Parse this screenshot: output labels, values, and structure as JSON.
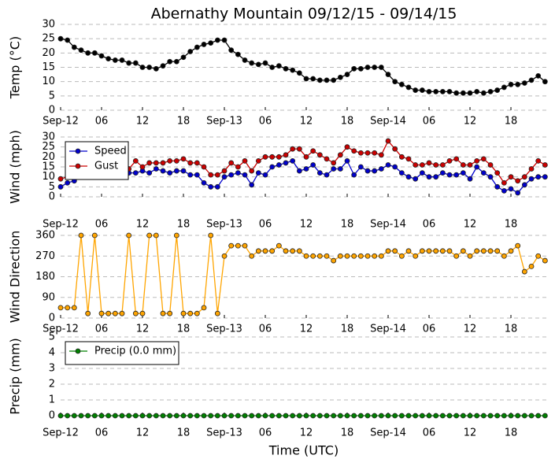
{
  "chart_data": [
    {
      "type": "line",
      "title": "Abernathy Mountain 09/12/15 - 09/14/15",
      "ylabel": "Temp (°C)",
      "categories": [
        "Sep-12",
        null,
        null,
        null,
        null,
        null,
        "06",
        null,
        null,
        null,
        null,
        null,
        "12",
        null,
        null,
        null,
        null,
        null,
        "18",
        null,
        null,
        null,
        null,
        null,
        "Sep-13",
        null,
        null,
        null,
        null,
        null,
        "06",
        null,
        null,
        null,
        null,
        null,
        "12",
        null,
        null,
        null,
        null,
        null,
        "18",
        null,
        null,
        null,
        null,
        null,
        "Sep-14",
        null,
        null,
        null,
        null,
        null,
        "06",
        null,
        null,
        null,
        null,
        null,
        "12",
        null,
        null,
        null,
        null,
        null,
        "18",
        null,
        null,
        null,
        null,
        null
      ],
      "series": [
        {
          "name": "Temp",
          "color": "#000000",
          "values": [
            25,
            24.5,
            22,
            21,
            20,
            20,
            19,
            18,
            17.5,
            17.5,
            16.5,
            16.5,
            15,
            15,
            14.5,
            15.5,
            17,
            17,
            18.5,
            20.5,
            22,
            23,
            23.5,
            24.5,
            24.5,
            21,
            19.5,
            17.5,
            16.5,
            16,
            16.5,
            15,
            15.5,
            14.5,
            14,
            13,
            11,
            11,
            10.5,
            10.5,
            10.5,
            11.5,
            12.5,
            14.5,
            14.5,
            15,
            15,
            15,
            12.5,
            10,
            9,
            8,
            7,
            7,
            6.5,
            6.5,
            6.5,
            6.5,
            6,
            6,
            6,
            6.5,
            6,
            6.5,
            7,
            8,
            9,
            9,
            9.5,
            10.5,
            12,
            10
          ]
        }
      ],
      "ylim": [
        0,
        30
      ],
      "yticks": [
        0,
        5,
        10,
        15,
        20,
        25,
        30
      ],
      "grid": true
    },
    {
      "type": "line",
      "ylabel": "Wind (mph)",
      "categories": [
        "Sep-12",
        null,
        null,
        null,
        null,
        null,
        "06",
        null,
        null,
        null,
        null,
        null,
        "12",
        null,
        null,
        null,
        null,
        null,
        "18",
        null,
        null,
        null,
        null,
        null,
        "Sep-13",
        null,
        null,
        null,
        null,
        null,
        "06",
        null,
        null,
        null,
        null,
        null,
        "12",
        null,
        null,
        null,
        null,
        null,
        "18",
        null,
        null,
        null,
        null,
        null,
        "Sep-14",
        null,
        null,
        null,
        null,
        null,
        "06",
        null,
        null,
        null,
        null,
        null,
        "12",
        null,
        null,
        null,
        null,
        null,
        "18",
        null,
        null,
        null,
        null,
        null
      ],
      "series": [
        {
          "name": "Speed",
          "color": "#0000cc",
          "values": [
            5,
            7,
            8,
            12,
            12,
            16,
            14,
            13,
            13,
            11,
            12,
            12,
            13,
            12,
            14,
            13,
            12,
            13,
            13,
            11,
            11,
            7,
            5,
            5,
            10,
            11,
            12,
            11,
            6,
            12,
            11,
            15,
            16,
            17,
            18,
            13,
            14,
            16,
            12,
            11,
            14,
            14,
            18,
            11,
            15,
            13,
            13,
            14,
            16,
            15,
            12,
            10,
            9,
            12,
            10,
            10,
            12,
            11,
            11,
            12,
            9,
            15,
            12,
            10,
            5,
            3,
            4,
            2,
            6,
            9,
            10,
            10
          ]
        },
        {
          "name": "Gust",
          "color": "#cc0000",
          "values": [
            9,
            10,
            12,
            15,
            17,
            18,
            18,
            17,
            16,
            15,
            14,
            18,
            15,
            17,
            17,
            17,
            18,
            18,
            19,
            17,
            17,
            15,
            11,
            11,
            13,
            17,
            15,
            18,
            13,
            18,
            20,
            20,
            20,
            21,
            24,
            24,
            20,
            23,
            21,
            19,
            17,
            21,
            25,
            23,
            22,
            22,
            22,
            21,
            28,
            24,
            20,
            19,
            16,
            16,
            17,
            16,
            16,
            18,
            19,
            16,
            16,
            18,
            19,
            16,
            12,
            7,
            10,
            8,
            10,
            14,
            18,
            16
          ]
        }
      ],
      "ylim": [
        0,
        30
      ],
      "yticks": [
        0,
        5,
        10,
        15,
        20,
        25,
        30
      ],
      "grid": true,
      "legend": "upper left"
    },
    {
      "type": "line",
      "ylabel": "Wind Direction",
      "categories": [
        "Sep-12",
        null,
        null,
        null,
        null,
        null,
        "06",
        null,
        null,
        null,
        null,
        null,
        "12",
        null,
        null,
        null,
        null,
        null,
        "18",
        null,
        null,
        null,
        null,
        null,
        "Sep-13",
        null,
        null,
        null,
        null,
        null,
        "06",
        null,
        null,
        null,
        null,
        null,
        "12",
        null,
        null,
        null,
        null,
        null,
        "18",
        null,
        null,
        null,
        null,
        null,
        "Sep-14",
        null,
        null,
        null,
        null,
        null,
        "06",
        null,
        null,
        null,
        null,
        null,
        "12",
        null,
        null,
        null,
        null,
        null,
        "18",
        null,
        null,
        null,
        null,
        null
      ],
      "series": [
        {
          "name": "Direction",
          "color": "#ffa500",
          "values": [
            45,
            45,
            45,
            360,
            20,
            360,
            20,
            20,
            20,
            20,
            360,
            20,
            20,
            360,
            360,
            20,
            20,
            360,
            20,
            20,
            20,
            45,
            360,
            20,
            270,
            315,
            315,
            315,
            270,
            292,
            292,
            292,
            315,
            292,
            292,
            292,
            270,
            270,
            270,
            270,
            250,
            270,
            270,
            270,
            270,
            270,
            270,
            270,
            292,
            292,
            270,
            292,
            270,
            292,
            292,
            292,
            292,
            292,
            270,
            292,
            270,
            292,
            292,
            292,
            292,
            270,
            292,
            315,
            202,
            225,
            270,
            250
          ]
        }
      ],
      "ylim": [
        0,
        360
      ],
      "yticks": [
        0,
        90,
        180,
        270,
        360
      ],
      "grid": true
    },
    {
      "type": "line",
      "ylabel": "Precip (mm)",
      "xlabel": "Time (UTC)",
      "categories": [
        "Sep-12",
        null,
        null,
        null,
        null,
        null,
        "06",
        null,
        null,
        null,
        null,
        null,
        "12",
        null,
        null,
        null,
        null,
        null,
        "18",
        null,
        null,
        null,
        null,
        null,
        "Sep-13",
        null,
        null,
        null,
        null,
        null,
        "06",
        null,
        null,
        null,
        null,
        null,
        "12",
        null,
        null,
        null,
        null,
        null,
        "18",
        null,
        null,
        null,
        null,
        null,
        "Sep-14",
        null,
        null,
        null,
        null,
        null,
        "06",
        null,
        null,
        null,
        null,
        null,
        "12",
        null,
        null,
        null,
        null,
        null,
        "18",
        null,
        null,
        null,
        null,
        null
      ],
      "series": [
        {
          "name": "Precip (0.0 mm)",
          "color": "#008000",
          "values": [
            0,
            0,
            0,
            0,
            0,
            0,
            0,
            0,
            0,
            0,
            0,
            0,
            0,
            0,
            0,
            0,
            0,
            0,
            0,
            0,
            0,
            0,
            0,
            0,
            0,
            0,
            0,
            0,
            0,
            0,
            0,
            0,
            0,
            0,
            0,
            0,
            0,
            0,
            0,
            0,
            0,
            0,
            0,
            0,
            0,
            0,
            0,
            0,
            0,
            0,
            0,
            0,
            0,
            0,
            0,
            0,
            0,
            0,
            0,
            0,
            0,
            0,
            0,
            0,
            0,
            0,
            0,
            0,
            0,
            0,
            0,
            0
          ]
        }
      ],
      "ylim": [
        0,
        5
      ],
      "yticks": [
        0,
        1,
        2,
        3,
        4,
        5
      ],
      "grid": true,
      "legend": "upper left"
    }
  ]
}
